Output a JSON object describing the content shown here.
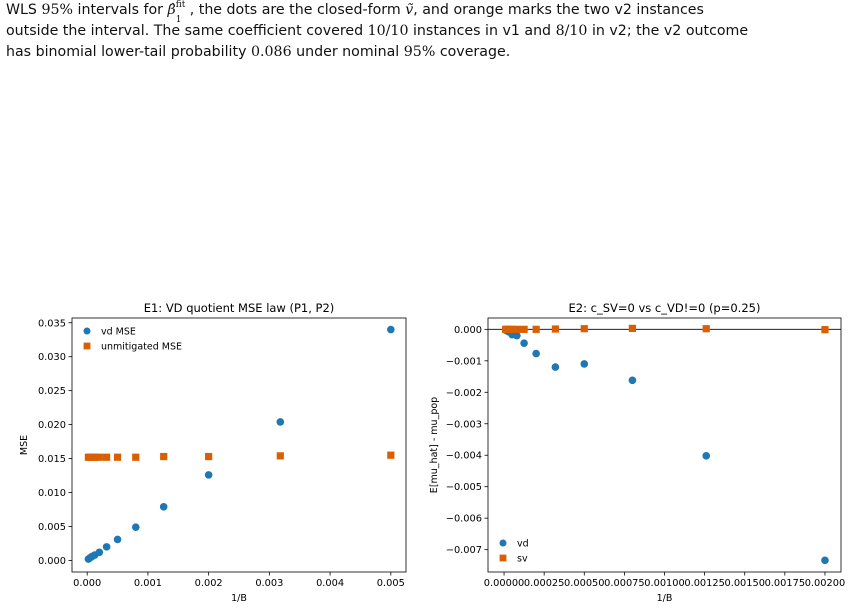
{
  "caption": {
    "line1_a": "WLS ",
    "line1_pct": "95%",
    "line1_b": " intervals for ",
    "beta_sym": "β̂",
    "beta_sup": "fit",
    "beta_sub": "1",
    "line1_c": ", the dots are the closed-form ",
    "v_sym": "ṽ",
    "line1_d": ", and orange marks the two v2 instances",
    "line2_a": "outside the interval. The same coefficient covered ",
    "line2_frac1": "10/10",
    "line2_b": " instances in v1 and ",
    "line2_frac2": "8/10",
    "line2_c": " in v2; the v2 outcome",
    "line3_a": "has binomial lower-tail probability ",
    "line3_prob": "0.086",
    "line3_b": " under nominal ",
    "line3_pct": "95%",
    "line3_c": " coverage."
  },
  "chart_data": [
    {
      "type": "scatter",
      "title": "E1: VD quotient MSE law (P1, P2)",
      "xlabel": "1/B",
      "ylabel": "MSE",
      "xlim": [
        -0.00025,
        0.00525
      ],
      "ylim": [
        -0.0017,
        0.0357
      ],
      "xticks": [
        "0.000",
        "0.001",
        "0.002",
        "0.003",
        "0.004",
        "0.005"
      ],
      "xtick_values": [
        0,
        0.001,
        0.002,
        0.003,
        0.004,
        0.005
      ],
      "yticks": [
        "0.000",
        "0.005",
        "0.010",
        "0.015",
        "0.020",
        "0.025",
        "0.030",
        "0.035"
      ],
      "ytick_values": [
        0,
        0.005,
        0.01,
        0.015,
        0.02,
        0.025,
        0.03,
        0.035
      ],
      "legend_position": "top-left",
      "grid": false,
      "series": [
        {
          "name": "vd MSE",
          "marker": "circle",
          "color": "#1f77b4",
          "x": [
            2e-05,
            5e-05,
            8e-05,
            0.000125,
            0.0002,
            0.00032,
            0.0005,
            0.0008,
            0.00126,
            0.002,
            0.00318,
            0.005
          ],
          "y": [
            0.0002,
            0.0004,
            0.0006,
            0.0008,
            0.0012,
            0.002,
            0.0031,
            0.0049,
            0.0079,
            0.0126,
            0.0204,
            0.034
          ]
        },
        {
          "name": "unmitigated MSE",
          "marker": "square",
          "color": "#d95f02",
          "x": [
            2e-05,
            5e-05,
            8e-05,
            0.000125,
            0.0002,
            0.00032,
            0.0005,
            0.0008,
            0.00126,
            0.002,
            0.00318,
            0.005
          ],
          "y": [
            0.0152,
            0.0152,
            0.0152,
            0.0152,
            0.0152,
            0.0152,
            0.0152,
            0.0152,
            0.0153,
            0.0153,
            0.0154,
            0.0155
          ]
        }
      ]
    },
    {
      "type": "scatter",
      "title": "E2: c_SV=0 vs c_VD!=0 (p=0.25)",
      "xlabel": "1/B",
      "ylabel": "E[mu_hat] - mu_pop",
      "xlim": [
        -0.0001,
        0.0021
      ],
      "ylim": [
        -0.00771,
        0.00036
      ],
      "xticks": [
        "0.00000",
        "0.00025",
        "0.00050",
        "0.00075",
        "0.00100",
        "0.00125",
        "0.00150",
        "0.00175",
        "0.00200"
      ],
      "xtick_values": [
        0,
        0.00025,
        0.0005,
        0.00075,
        0.001,
        0.00125,
        0.0015,
        0.00175,
        0.002
      ],
      "yticks": [
        "0.000",
        "−0.001",
        "−0.002",
        "−0.003",
        "−0.004",
        "−0.005",
        "−0.006",
        "−0.007"
      ],
      "ytick_values": [
        0,
        -0.001,
        -0.002,
        -0.003,
        -0.004,
        -0.005,
        -0.006,
        -0.007
      ],
      "hline": 0,
      "legend_position": "bottom-left",
      "grid": false,
      "series": [
        {
          "name": "vd",
          "marker": "circle",
          "color": "#1f77b4",
          "x": [
            1e-05,
            2e-05,
            3e-05,
            5e-05,
            8e-05,
            0.000125,
            0.0002,
            0.00032,
            0.0005,
            0.0008,
            0.00126,
            0.002
          ],
          "y": [
            -2e-05,
            -5e-05,
            -8e-05,
            -0.00017,
            -0.0002,
            -0.00044,
            -0.00077,
            -0.0012,
            -0.0011,
            -0.00162,
            -0.00402,
            -0.00734
          ]
        },
        {
          "name": "sv",
          "marker": "square",
          "color": "#d95f02",
          "x": [
            1e-05,
            2e-05,
            3e-05,
            5e-05,
            8e-05,
            0.000125,
            0.0002,
            0.00032,
            0.0005,
            0.0008,
            0.00126,
            0.002
          ],
          "y": [
            0.0,
            0.0,
            0.0,
            0.0,
            0.0,
            0.0,
            0.0,
            1e-05,
            2e-05,
            3e-05,
            2e-05,
            -1e-05
          ]
        }
      ]
    }
  ]
}
